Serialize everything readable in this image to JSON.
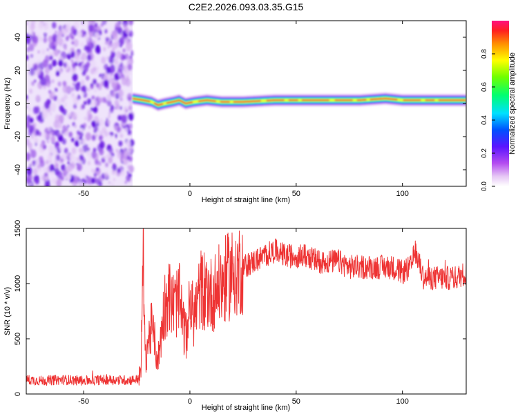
{
  "title": "C2E2.2026.093.03.35.G15",
  "chart_data": [
    {
      "type": "heatmap",
      "xlabel": "Height of straight line (km)",
      "ylabel": "Frequency (Hz)",
      "xlim": [
        -77,
        130
      ],
      "ylim": [
        -50,
        50
      ],
      "xticks": [
        -50,
        0,
        50,
        100
      ],
      "yticks": [
        -40,
        -20,
        0,
        20,
        40
      ],
      "noise_region_x": [
        -77,
        -27
      ],
      "signal_frequency_hz": 2,
      "signal_track": [
        {
          "x": -27,
          "y": 3
        },
        {
          "x": -22,
          "y": 2
        },
        {
          "x": -18,
          "y": 1
        },
        {
          "x": -15,
          "y": -1
        },
        {
          "x": -12,
          "y": 0
        },
        {
          "x": -8,
          "y": 1
        },
        {
          "x": -5,
          "y": 2
        },
        {
          "x": -2,
          "y": 0
        },
        {
          "x": 2,
          "y": 1
        },
        {
          "x": 8,
          "y": 2
        },
        {
          "x": 15,
          "y": 1
        },
        {
          "x": 25,
          "y": 1
        },
        {
          "x": 40,
          "y": 2
        },
        {
          "x": 60,
          "y": 2
        },
        {
          "x": 80,
          "y": 2
        },
        {
          "x": 92,
          "y": 3
        },
        {
          "x": 100,
          "y": 2
        },
        {
          "x": 115,
          "y": 2
        },
        {
          "x": 130,
          "y": 2
        }
      ],
      "colorbar": {
        "label": "Normalized spectral amplitude",
        "range": [
          0,
          1
        ],
        "ticks": [
          "0.0",
          "0.2",
          "0.4",
          "0.6",
          "0.8"
        ]
      }
    },
    {
      "type": "line",
      "xlabel": "Height of straight line (km)",
      "ylabel": "SNR (10 * v/v)",
      "xlim": [
        -77,
        130
      ],
      "ylim": [
        0,
        1500
      ],
      "xticks": [
        -50,
        0,
        50,
        100
      ],
      "yticks": [
        0,
        500,
        1000,
        1500
      ],
      "color": "#ee3333",
      "series": [
        {
          "x": [
            -77,
            -70,
            -60,
            -50,
            -40,
            -30,
            -25,
            -23,
            -22,
            -21,
            -20,
            -18,
            -15,
            -12,
            -10,
            -8,
            -5,
            -2,
            0,
            2,
            5,
            8,
            10,
            15,
            20,
            25,
            30,
            35,
            40,
            45,
            50,
            55,
            60,
            65,
            70,
            75,
            80,
            85,
            90,
            95,
            100,
            104,
            106,
            110,
            115,
            120,
            125,
            130
          ],
          "values": [
            130,
            120,
            130,
            120,
            130,
            125,
            130,
            180,
            1400,
            300,
            450,
            600,
            300,
            800,
            900,
            800,
            850,
            500,
            800,
            700,
            950,
            950,
            900,
            1000,
            1100,
            1150,
            1200,
            1250,
            1300,
            1250,
            1250,
            1250,
            1200,
            1200,
            1200,
            1150,
            1150,
            1150,
            1150,
            1150,
            1100,
            1150,
            1300,
            1050,
            1050,
            1050,
            1050,
            1100
          ]
        }
      ]
    }
  ]
}
